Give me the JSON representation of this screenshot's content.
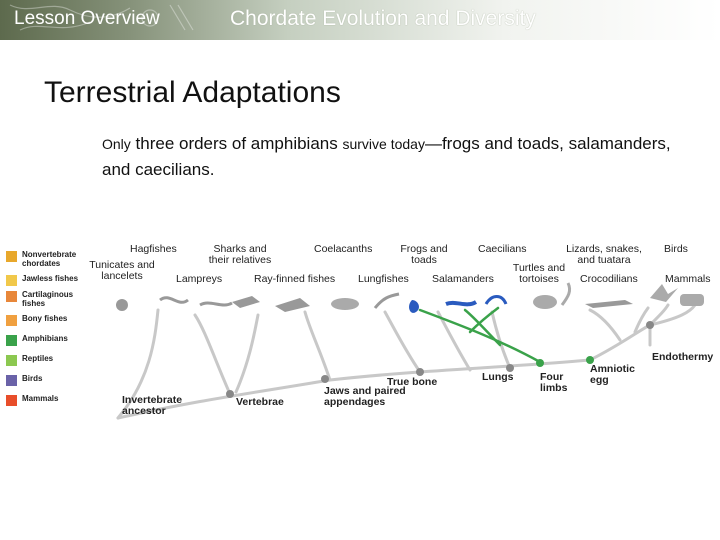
{
  "header": {
    "lesson": "Lesson Overview",
    "chapter": "Chordate Evolution and Diversity"
  },
  "slide": {
    "title": "Terrestrial Adaptations",
    "body_prefix": "Only",
    "body_mid1": " three orders of amphibians ",
    "body_mid2": "survive today",
    "body_rest": "—frogs and toads, salamanders, and caecilians."
  },
  "legend": [
    {
      "label": "Nonvertebrate chordates",
      "color": "#e8a82c"
    },
    {
      "label": "Jawless fishes",
      "color": "#f1c84a"
    },
    {
      "label": "Cartilaginous fishes",
      "color": "#e8873a"
    },
    {
      "label": "Bony fishes",
      "color": "#f0a040"
    },
    {
      "label": "Amphibians",
      "color": "#3aa24a"
    },
    {
      "label": "Reptiles",
      "color": "#8cc850"
    },
    {
      "label": "Birds",
      "color": "#6a62a8"
    },
    {
      "label": "Mammals",
      "color": "#e84e2a"
    }
  ],
  "taxa": {
    "hagfishes": "Hagfishes",
    "sharks": "Sharks and their relatives",
    "coelacanths": "Coelacanths",
    "frogs": "Frogs and toads",
    "caecilians": "Caecilians",
    "lizards": "Lizards, snakes, and tuatara",
    "birds": "Birds",
    "tunicates": "Tunicates and lancelets",
    "lampreys": "Lampreys",
    "rayfinned": "Ray-finned fishes",
    "lungfishes": "Lungfishes",
    "salamanders": "Salamanders",
    "turtles": "Turtles and tortoises",
    "crocodilians": "Crocodilians",
    "mammals": "Mammals"
  },
  "nodes": {
    "invertebrate_ancestor": "Invertebrate ancestor",
    "vertebrae": "Vertebrae",
    "jaws": "Jaws and paired appendages",
    "true_bone": "True bone",
    "lungs": "Lungs",
    "four_limbs": "Four limbs",
    "amniotic_egg": "Amniotic egg",
    "endothermy": "Endothermy"
  }
}
